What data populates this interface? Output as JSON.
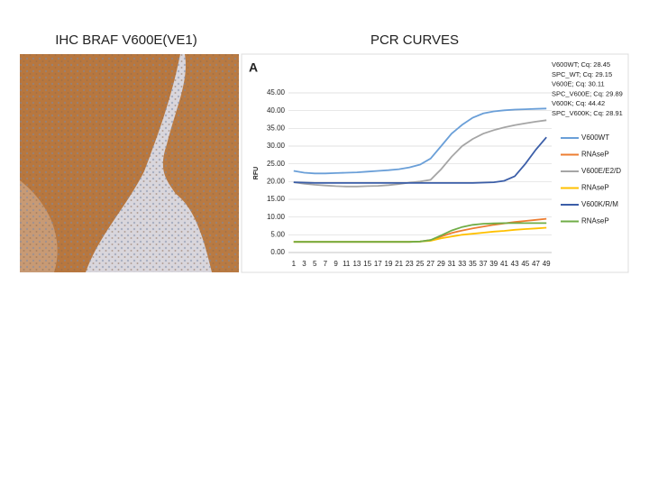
{
  "left_title": "IHC BRAF V600E(VE1)",
  "chart_data": {
    "type": "line",
    "title": "PCR CURVES",
    "panel_label": "A",
    "y_label": "RFU",
    "annotations": [
      "V600WT; Cq: 28.45",
      "SPC_WT; Cq: 29.15",
      "V600E; Cq: 30.11",
      "SPC_V600E; Cq: 29.89",
      "V600K; Cq: 44.42",
      "SPC_V600K; Cq: 28.91"
    ],
    "x": [
      1,
      3,
      5,
      7,
      9,
      11,
      13,
      15,
      17,
      19,
      21,
      23,
      25,
      27,
      29,
      31,
      33,
      35,
      37,
      39,
      41,
      43,
      45,
      47,
      49
    ],
    "xlim": [
      0,
      50
    ],
    "xticks": [
      1,
      3,
      5,
      7,
      9,
      11,
      13,
      15,
      17,
      19,
      21,
      23,
      25,
      27,
      29,
      31,
      33,
      35,
      37,
      39,
      41,
      43,
      45,
      47,
      49
    ],
    "ylim": [
      0,
      45
    ],
    "yticks": [
      {
        "value": 0,
        "label": "0.00"
      },
      {
        "value": 5,
        "label": "5.00"
      },
      {
        "value": 10,
        "label": "10.00"
      },
      {
        "value": 15,
        "label": "15.00"
      },
      {
        "value": 20,
        "label": "20.00"
      },
      {
        "value": 25,
        "label": "25.00"
      },
      {
        "value": 30,
        "label": "30.00"
      },
      {
        "value": 35,
        "label": "35.00"
      },
      {
        "value": 40,
        "label": "40.00"
      },
      {
        "value": 45,
        "label": "45.00"
      }
    ],
    "grid": true,
    "series": [
      {
        "name": "V600WT",
        "color": "#6a9fd8",
        "values": [
          23,
          22.5,
          22.3,
          22.3,
          22.4,
          22.5,
          22.6,
          22.8,
          23,
          23.2,
          23.5,
          24,
          24.8,
          26.5,
          30,
          33.5,
          36,
          38,
          39.2,
          39.8,
          40.1,
          40.3,
          40.4,
          40.5,
          40.6
        ]
      },
      {
        "name": "RNAseP",
        "color": "#ed7d31",
        "values": [
          3,
          3,
          3,
          3,
          3,
          3,
          3,
          3,
          3,
          3,
          3,
          3,
          3.1,
          3.5,
          4.5,
          5.5,
          6.2,
          6.8,
          7.3,
          7.8,
          8.2,
          8.6,
          8.9,
          9.2,
          9.5
        ]
      },
      {
        "name": "V600E/E2/D",
        "color": "#a5a5a5",
        "values": [
          19.8,
          19.4,
          19.1,
          18.9,
          18.7,
          18.6,
          18.6,
          18.7,
          18.8,
          19,
          19.3,
          19.7,
          20,
          20.5,
          23.5,
          27,
          30,
          32,
          33.5,
          34.5,
          35.3,
          35.9,
          36.4,
          36.9,
          37.3
        ]
      },
      {
        "name": "RNAseP",
        "color": "#ffc000",
        "values": [
          3,
          3,
          3,
          3,
          3,
          3,
          3,
          3,
          3,
          3,
          3,
          3,
          3.1,
          3.3,
          4,
          4.5,
          5,
          5.3,
          5.6,
          5.9,
          6.1,
          6.4,
          6.6,
          6.8,
          7
        ]
      },
      {
        "name": "V600K/R/M",
        "color": "#3b5ea8",
        "values": [
          19.8,
          19.7,
          19.6,
          19.6,
          19.6,
          19.6,
          19.6,
          19.6,
          19.6,
          19.6,
          19.6,
          19.6,
          19.6,
          19.6,
          19.6,
          19.6,
          19.6,
          19.6,
          19.7,
          19.8,
          20.2,
          21.5,
          25,
          29,
          32.5
        ]
      },
      {
        "name": "RNAseP",
        "color": "#70ad47",
        "values": [
          3,
          3,
          3,
          3,
          3,
          3,
          3,
          3,
          3,
          3,
          3,
          3,
          3.1,
          3.5,
          4.8,
          6.2,
          7.2,
          7.8,
          8.1,
          8.2,
          8.3,
          8.3,
          8.3,
          8.3,
          8.3
        ]
      }
    ]
  }
}
